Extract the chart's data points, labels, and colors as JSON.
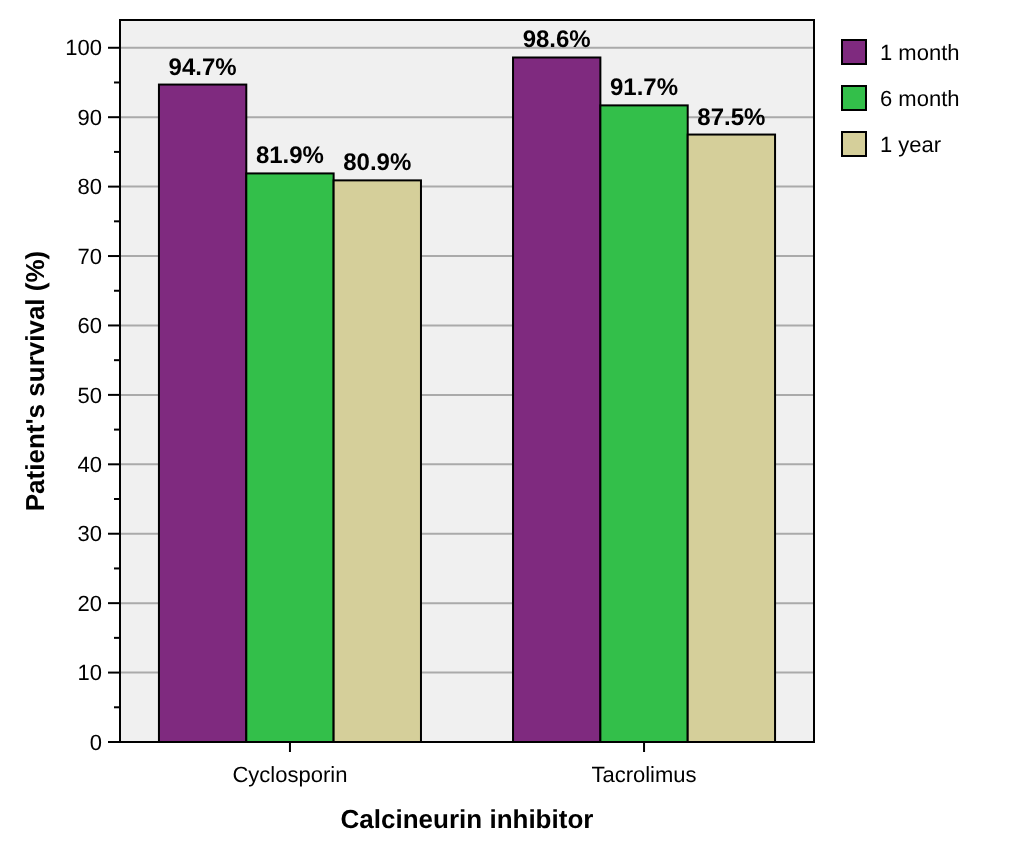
{
  "chart_data": {
    "type": "bar",
    "xlabel": "Calcineurin inhibitor",
    "ylabel": "Patient's survival (%)",
    "categories": [
      "Cyclosporin",
      "Tacrolimus"
    ],
    "series": [
      {
        "name": "1 month",
        "color": "#7f2a7f",
        "values": [
          94.7,
          98.6
        ]
      },
      {
        "name": "6 month",
        "color": "#33bf4a",
        "values": [
          81.9,
          91.7
        ]
      },
      {
        "name": "1 year",
        "color": "#d5cf9a",
        "values": [
          80.9,
          87.5
        ]
      }
    ],
    "value_labels": [
      [
        "94.7%",
        "98.6%"
      ],
      [
        "81.9%",
        "91.7%"
      ],
      [
        "80.9%",
        "87.5%"
      ]
    ],
    "ylim": [
      0,
      104
    ],
    "yticks": [
      0,
      10,
      20,
      30,
      40,
      50,
      60,
      70,
      80,
      90,
      100
    ],
    "grid": "y",
    "legend": "top right"
  }
}
